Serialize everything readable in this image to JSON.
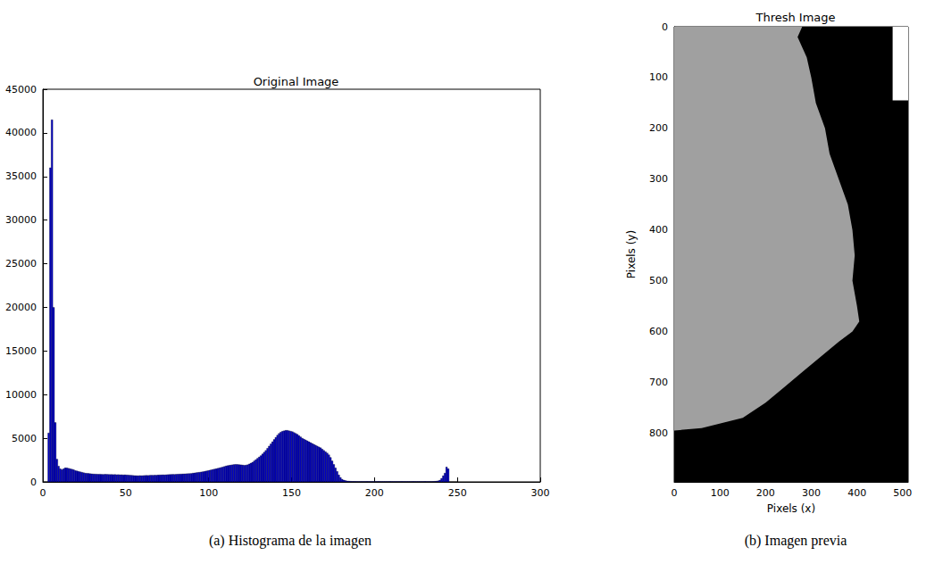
{
  "chart_data": [
    {
      "type": "histogram",
      "title": "Original Image",
      "caption": "(a) Histograma de la imagen",
      "color": "#0000cc",
      "bins": [
        0,
        1,
        2,
        3,
        4,
        5,
        6,
        7,
        8,
        9,
        10,
        11,
        12,
        13,
        14,
        15,
        16,
        17,
        18,
        19,
        20,
        21,
        22,
        23,
        24,
        25,
        26,
        27,
        28,
        29,
        30,
        31,
        32,
        33,
        34,
        35,
        36,
        37,
        38,
        39,
        40,
        41,
        42,
        43,
        44,
        45,
        46,
        47,
        48,
        49,
        50,
        51,
        52,
        53,
        54,
        55,
        56,
        57,
        58,
        59,
        60,
        61,
        62,
        63,
        64,
        65,
        66,
        67,
        68,
        69,
        70,
        71,
        72,
        73,
        74,
        75,
        76,
        77,
        78,
        79,
        80,
        81,
        82,
        83,
        84,
        85,
        86,
        87,
        88,
        89,
        90,
        91,
        92,
        93,
        94,
        95,
        96,
        97,
        98,
        99,
        100,
        101,
        102,
        103,
        104,
        105,
        106,
        107,
        108,
        109,
        110,
        111,
        112,
        113,
        114,
        115,
        116,
        117,
        118,
        119,
        120,
        121,
        122,
        123,
        124,
        125,
        126,
        127,
        128,
        129,
        130,
        131,
        132,
        133,
        134,
        135,
        136,
        137,
        138,
        139,
        140,
        141,
        142,
        143,
        144,
        145,
        146,
        147,
        148,
        149,
        150,
        151,
        152,
        153,
        154,
        155,
        156,
        157,
        158,
        159,
        160,
        161,
        162,
        163,
        164,
        165,
        166,
        167,
        168,
        169,
        170,
        171,
        172,
        173,
        174,
        175,
        176,
        177,
        178,
        179,
        180,
        181,
        182,
        183,
        184,
        185,
        186,
        187,
        188,
        189,
        190,
        191,
        192,
        193,
        194,
        195,
        196,
        197,
        198,
        199,
        200,
        201,
        202,
        203,
        204,
        205,
        206,
        207,
        208,
        209,
        210,
        211,
        212,
        213,
        214,
        215,
        216,
        217,
        218,
        219,
        220,
        221,
        222,
        223,
        224,
        225,
        226,
        227,
        228,
        229,
        230,
        231,
        232,
        233,
        234,
        235,
        236,
        237,
        238,
        239,
        240,
        241,
        242,
        243,
        244,
        245,
        246,
        247,
        248,
        249,
        250
      ],
      "values": [
        0,
        0,
        0,
        5600,
        36000,
        41500,
        20000,
        6800,
        2600,
        1800,
        1500,
        1400,
        1500,
        1600,
        1600,
        1550,
        1500,
        1450,
        1400,
        1300,
        1250,
        1200,
        1150,
        1100,
        1050,
        1000,
        980,
        960,
        940,
        920,
        900,
        890,
        880,
        870,
        880,
        860,
        850,
        870,
        860,
        850,
        840,
        850,
        830,
        840,
        820,
        830,
        810,
        820,
        800,
        810,
        790,
        780,
        760,
        750,
        730,
        720,
        710,
        700,
        720,
        710,
        720,
        730,
        740,
        730,
        750,
        760,
        750,
        770,
        760,
        780,
        790,
        800,
        810,
        800,
        820,
        830,
        840,
        850,
        860,
        850,
        870,
        880,
        890,
        900,
        910,
        920,
        930,
        940,
        950,
        960,
        1000,
        1020,
        1050,
        1080,
        1100,
        1130,
        1160,
        1200,
        1240,
        1280,
        1330,
        1370,
        1420,
        1460,
        1500,
        1550,
        1600,
        1650,
        1700,
        1760,
        1820,
        1860,
        1900,
        1930,
        1960,
        1990,
        2000,
        1990,
        1970,
        1950,
        1930,
        1900,
        1920,
        1960,
        2050,
        2150,
        2250,
        2400,
        2550,
        2700,
        2850,
        3000,
        3200,
        3400,
        3600,
        3850,
        4100,
        4350,
        4600,
        4850,
        5100,
        5350,
        5550,
        5700,
        5800,
        5850,
        5900,
        5900,
        5850,
        5800,
        5750,
        5650,
        5550,
        5450,
        5300,
        5150,
        5000,
        4900,
        4800,
        4700,
        4600,
        4500,
        4400,
        4300,
        4200,
        4100,
        4000,
        3900,
        3750,
        3600,
        3450,
        3300,
        3100,
        2800,
        2400,
        2000,
        1600,
        1200,
        800,
        500,
        300,
        200,
        150,
        100,
        80,
        60,
        50,
        50,
        40,
        40,
        40,
        40,
        40,
        40,
        40,
        40,
        40,
        40,
        40,
        40,
        40,
        40,
        40,
        40,
        40,
        40,
        40,
        40,
        40,
        40,
        40,
        40,
        40,
        40,
        40,
        40,
        40,
        40,
        40,
        40,
        40,
        40,
        40,
        40,
        40,
        40,
        40,
        40,
        40,
        40,
        40,
        40,
        40,
        40,
        40,
        50,
        60,
        80,
        120,
        200,
        400,
        700,
        1000,
        1700,
        1500,
        0,
        0,
        0,
        0,
        0
      ],
      "xlim": [
        0,
        300
      ],
      "xticks": [
        0,
        50,
        100,
        150,
        200,
        250,
        300
      ],
      "ylim": [
        0,
        45000
      ],
      "yticks": [
        0,
        5000,
        10000,
        15000,
        20000,
        25000,
        30000,
        35000,
        40000,
        45000
      ],
      "grid": false
    },
    {
      "type": "image",
      "title": "Thresh Image",
      "caption": "(b) Imagen previa",
      "x_label": "Pixels (x)",
      "y_label": "Pixels (y)",
      "color": "#000000",
      "xlim": [
        0,
        512
      ],
      "xticks": [
        0,
        100,
        200,
        300,
        400,
        500
      ],
      "ylim": [
        896,
        0
      ],
      "yticks": [
        0,
        100,
        200,
        300,
        400,
        500,
        600,
        700,
        800
      ],
      "regions": [
        {
          "color": "#a0a0a0",
          "points": [
            [
              0,
              0
            ],
            [
              280,
              0
            ],
            [
              270,
              20
            ],
            [
              290,
              60
            ],
            [
              300,
              100
            ],
            [
              310,
              150
            ],
            [
              330,
              200
            ],
            [
              340,
              250
            ],
            [
              360,
              300
            ],
            [
              380,
              350
            ],
            [
              390,
              400
            ],
            [
              395,
              450
            ],
            [
              390,
              500
            ],
            [
              400,
              550
            ],
            [
              405,
              580
            ],
            [
              390,
              600
            ],
            [
              360,
              620
            ],
            [
              320,
              650
            ],
            [
              280,
              680
            ],
            [
              240,
              710
            ],
            [
              200,
              740
            ],
            [
              150,
              770
            ],
            [
              60,
              790
            ],
            [
              0,
              795
            ]
          ]
        },
        {
          "color": "#ffffff",
          "points": [
            [
              478,
              0
            ],
            [
              512,
              0
            ],
            [
              512,
              145
            ],
            [
              478,
              145
            ]
          ]
        }
      ],
      "grid": false
    }
  ]
}
